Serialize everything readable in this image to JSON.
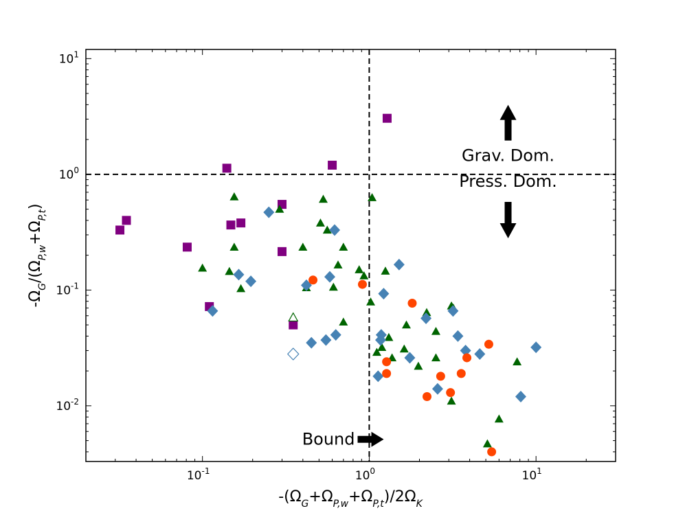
{
  "chart_data": {
    "type": "scatter",
    "xscale": "log",
    "yscale": "log",
    "xlim": [
      0.02,
      30
    ],
    "ylim": [
      0.0033,
      12
    ],
    "xlabel": "-(Ω_G+Ω_P,w+Ω_P,t)/2Ω_K",
    "ylabel": "-Ω_G/(Ω_P,w+Ω_P,t)",
    "x_ticks": [
      {
        "value": 0.1,
        "base": "10",
        "exp": "-1"
      },
      {
        "value": 1,
        "base": "10",
        "exp": "0"
      },
      {
        "value": 10,
        "base": "10",
        "exp": "1"
      }
    ],
    "y_ticks": [
      {
        "value": 0.01,
        "base": "10",
        "exp": "-2"
      },
      {
        "value": 0.1,
        "base": "10",
        "exp": "-1"
      },
      {
        "value": 1,
        "base": "10",
        "exp": "0"
      },
      {
        "value": 10,
        "base": "10",
        "exp": "1"
      }
    ],
    "reference_lines": [
      {
        "orientation": "vertical",
        "value": 1,
        "style": "dashed"
      },
      {
        "orientation": "horizontal",
        "value": 1,
        "style": "dashed"
      }
    ],
    "annotations": [
      {
        "text": "Grav. Dom.",
        "x": 6.8,
        "y": 1.3,
        "arrow": "up"
      },
      {
        "text": "Press. Dom.",
        "x": 6.8,
        "y": 0.78,
        "arrow": "down"
      },
      {
        "text": "Bound",
        "x": 0.82,
        "y": 0.0046,
        "arrow": "right"
      }
    ],
    "series": [
      {
        "name": "squares",
        "marker": "square",
        "color": "#800080",
        "points": [
          [
            0.032,
            0.33
          ],
          [
            0.035,
            0.4
          ],
          [
            0.081,
            0.235
          ],
          [
            0.11,
            0.072
          ],
          [
            0.14,
            1.13
          ],
          [
            0.148,
            0.365
          ],
          [
            0.17,
            0.38
          ],
          [
            0.3,
            0.55
          ],
          [
            0.3,
            0.215
          ],
          [
            0.35,
            0.05
          ],
          [
            0.6,
            1.2
          ],
          [
            1.28,
            3.05
          ]
        ]
      },
      {
        "name": "triangles",
        "marker": "triangle",
        "color": "#006400",
        "points": [
          [
            0.1,
            0.155
          ],
          [
            0.145,
            0.145
          ],
          [
            0.155,
            0.64
          ],
          [
            0.155,
            0.235
          ],
          [
            0.17,
            0.103
          ],
          [
            0.29,
            0.5
          ],
          [
            0.35,
            0.058,
            "open"
          ],
          [
            0.4,
            0.235
          ],
          [
            0.42,
            0.105
          ],
          [
            0.51,
            0.38
          ],
          [
            0.53,
            0.61
          ],
          [
            0.56,
            0.33
          ],
          [
            0.61,
            0.106
          ],
          [
            0.65,
            0.165
          ],
          [
            0.7,
            0.235
          ],
          [
            0.7,
            0.053
          ],
          [
            0.87,
            0.15
          ],
          [
            0.93,
            0.133
          ],
          [
            1.02,
            0.079
          ],
          [
            1.04,
            0.63
          ],
          [
            1.11,
            0.029
          ],
          [
            1.19,
            0.032
          ],
          [
            1.25,
            0.146
          ],
          [
            1.31,
            0.039
          ],
          [
            1.37,
            0.026
          ],
          [
            1.62,
            0.031
          ],
          [
            1.67,
            0.05
          ],
          [
            1.97,
            0.022
          ],
          [
            2.21,
            0.064
          ],
          [
            2.51,
            0.044
          ],
          [
            2.51,
            0.026
          ],
          [
            3.11,
            0.073
          ],
          [
            3.11,
            0.011
          ],
          [
            3.19,
            0.07
          ],
          [
            5.11,
            0.0047
          ],
          [
            6.0,
            0.0077
          ],
          [
            7.7,
            0.024
          ]
        ]
      },
      {
        "name": "diamonds",
        "marker": "diamond",
        "color": "#4682B4",
        "points": [
          [
            0.115,
            0.066
          ],
          [
            0.165,
            0.136
          ],
          [
            0.195,
            0.119
          ],
          [
            0.25,
            0.47
          ],
          [
            0.35,
            0.028,
            "open"
          ],
          [
            0.42,
            0.11
          ],
          [
            0.45,
            0.035
          ],
          [
            0.55,
            0.037
          ],
          [
            0.58,
            0.13
          ],
          [
            0.62,
            0.33
          ],
          [
            0.63,
            0.041
          ],
          [
            1.13,
            0.018
          ],
          [
            1.17,
            0.037
          ],
          [
            1.18,
            0.041
          ],
          [
            1.22,
            0.093
          ],
          [
            1.51,
            0.166
          ],
          [
            1.75,
            0.026
          ],
          [
            2.19,
            0.057
          ],
          [
            2.57,
            0.014
          ],
          [
            3.18,
            0.066
          ],
          [
            3.4,
            0.04
          ],
          [
            3.78,
            0.03
          ],
          [
            4.6,
            0.028
          ],
          [
            8.1,
            0.012
          ],
          [
            10.0,
            0.032
          ]
        ]
      },
      {
        "name": "circles",
        "marker": "circle",
        "color": "#FF4500",
        "points": [
          [
            0.46,
            0.122
          ],
          [
            0.91,
            0.112
          ],
          [
            1.27,
            0.024
          ],
          [
            1.27,
            0.019
          ],
          [
            1.81,
            0.077
          ],
          [
            2.22,
            0.012
          ],
          [
            2.68,
            0.018
          ],
          [
            3.07,
            0.013
          ],
          [
            3.56,
            0.019
          ],
          [
            3.85,
            0.026
          ],
          [
            5.21,
            0.034
          ],
          [
            5.42,
            0.004
          ]
        ]
      }
    ]
  }
}
